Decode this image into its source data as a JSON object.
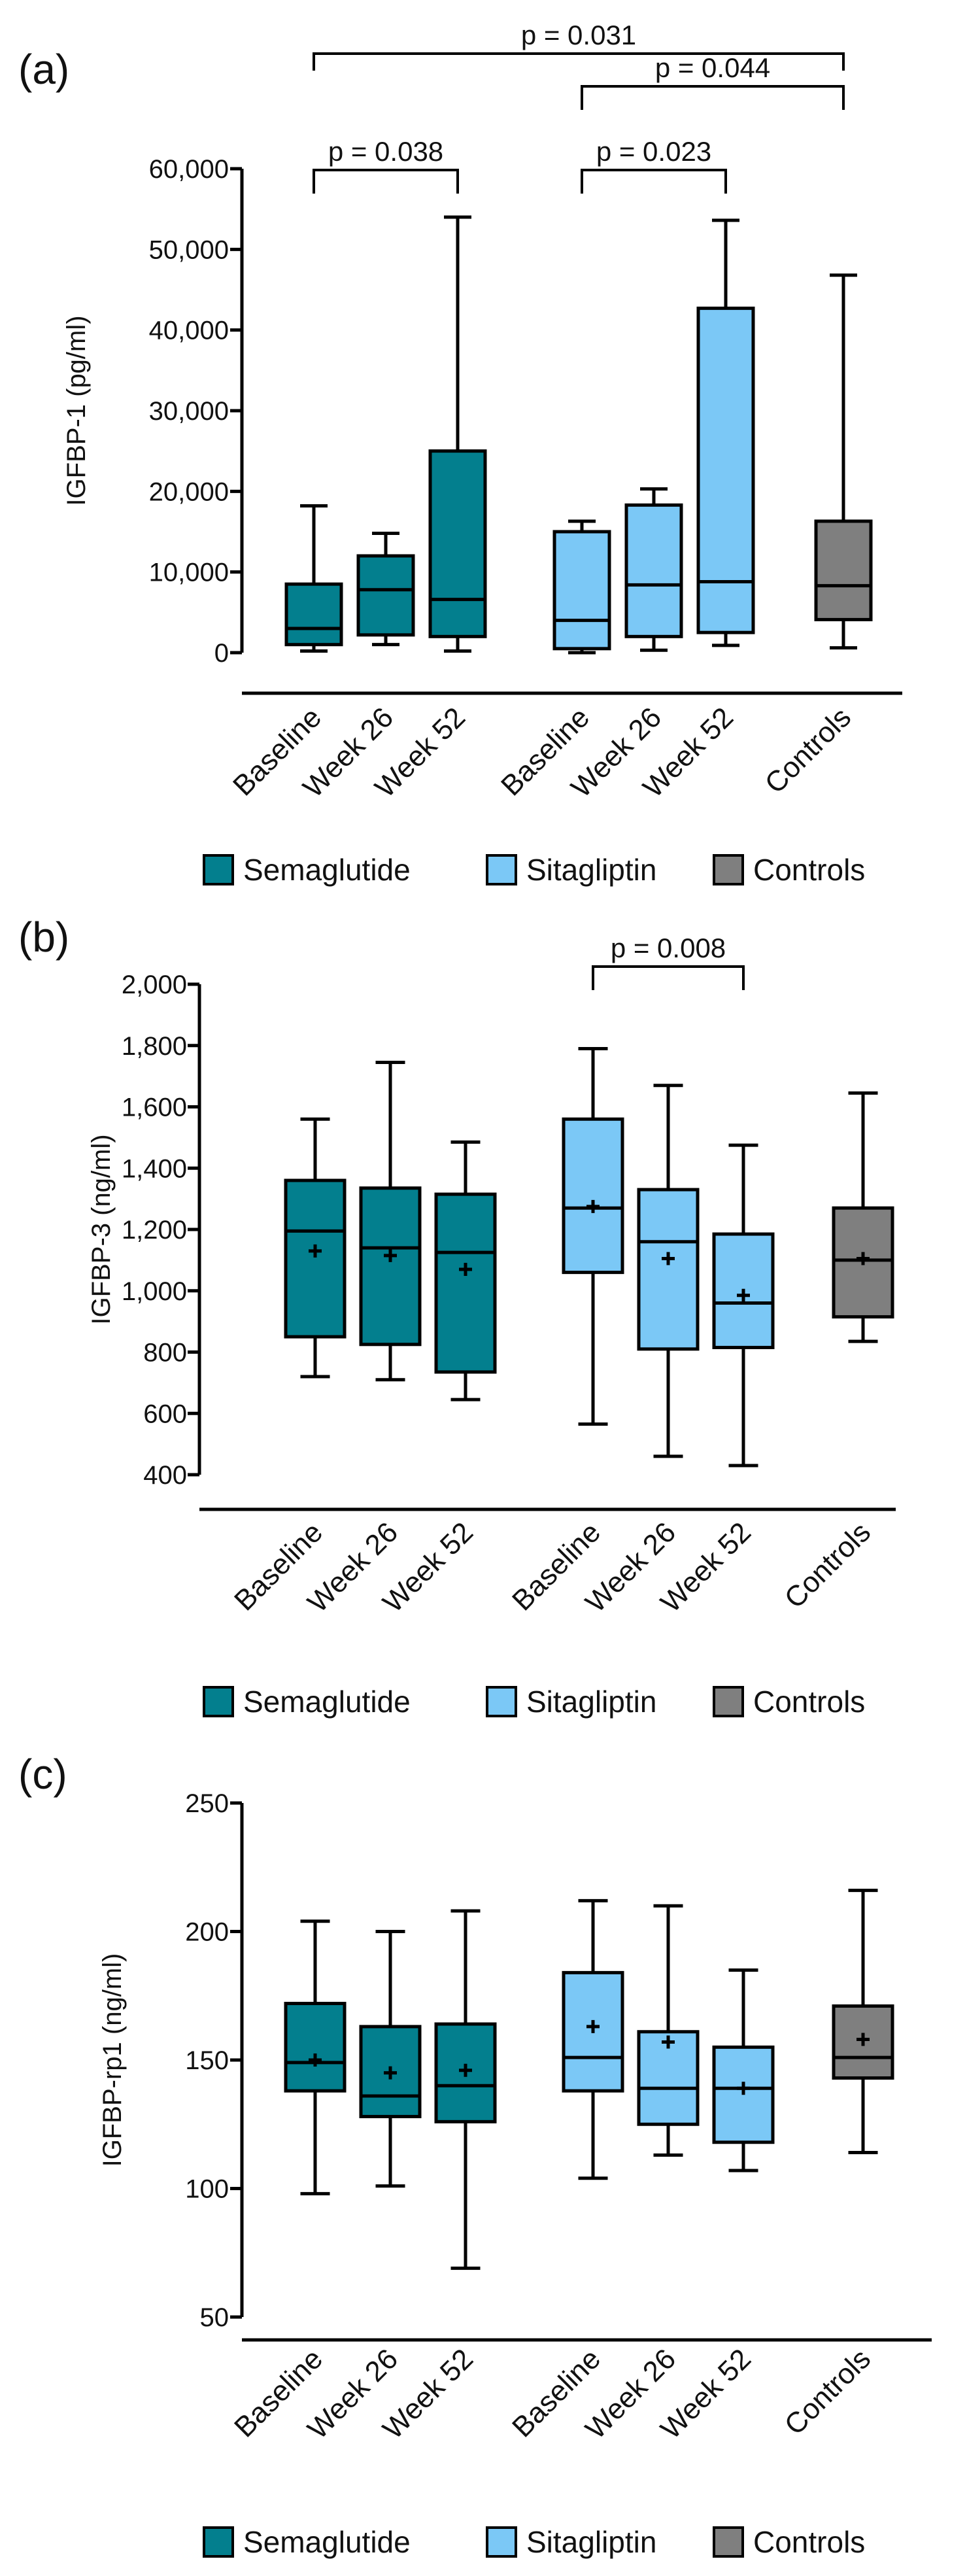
{
  "colors": {
    "semaglutide": "#037f8e",
    "sitagliptin": "#7bc8f6",
    "controls": "#7f7f7f",
    "line": "#000000"
  },
  "legend": [
    "Semaglutide",
    "Sitagliptin",
    "Controls"
  ],
  "chart_data": [
    {
      "type": "box",
      "panel_label": "(a)",
      "ylabel": "IGFBP-1 (pg/ml)",
      "ylim": [
        0,
        60000
      ],
      "yticks": [
        0,
        10000,
        20000,
        30000,
        40000,
        50000,
        60000
      ],
      "ytick_labels": [
        "0",
        "10,000",
        "20,000",
        "30,000",
        "40,000",
        "50,000",
        "60,000"
      ],
      "categories": [
        "Baseline",
        "Week 26",
        "Week 52",
        "Baseline",
        "Week 26",
        "Week 52",
        "Controls"
      ],
      "boxes": [
        {
          "group": "semaglutide",
          "min": 200,
          "q1": 1000,
          "median": 3000,
          "q3": 8500,
          "max": 18200
        },
        {
          "group": "semaglutide",
          "min": 1000,
          "q1": 2200,
          "median": 7800,
          "q3": 12000,
          "max": 14800
        },
        {
          "group": "semaglutide",
          "min": 200,
          "q1": 2000,
          "median": 6600,
          "q3": 25000,
          "max": 54000
        },
        {
          "group": "sitagliptin",
          "min": 0,
          "q1": 500,
          "median": 4000,
          "q3": 15000,
          "max": 16300
        },
        {
          "group": "sitagliptin",
          "min": 300,
          "q1": 2000,
          "median": 8400,
          "q3": 18300,
          "max": 20300
        },
        {
          "group": "sitagliptin",
          "min": 900,
          "q1": 2500,
          "median": 8800,
          "q3": 42700,
          "max": 53600
        },
        {
          "group": "controls",
          "min": 600,
          "q1": 4100,
          "median": 8300,
          "q3": 16300,
          "max": 46800
        }
      ],
      "comparisons": [
        {
          "from": 0,
          "to": 2,
          "label": "p = 0.038",
          "level": 1
        },
        {
          "from": 3,
          "to": 5,
          "label": "p = 0.023",
          "level": 1
        },
        {
          "from": 3,
          "to": 6,
          "label": "p = 0.044",
          "level": 2
        },
        {
          "from": 0,
          "to": 6,
          "label": "p = 0.031",
          "level": 3
        }
      ]
    },
    {
      "type": "box",
      "panel_label": "(b)",
      "ylabel": "IGFBP-3 (ng/ml)",
      "ylim": [
        400,
        2000
      ],
      "yticks": [
        400,
        600,
        800,
        1000,
        1200,
        1400,
        1600,
        1800,
        2000
      ],
      "ytick_labels": [
        "400",
        "600",
        "800",
        "1,000",
        "1,200",
        "1,400",
        "1,600",
        "1,800",
        "2,000"
      ],
      "categories": [
        "Baseline",
        "Week 26",
        "Week 52",
        "Baseline",
        "Week 26",
        "Week 52",
        "Controls"
      ],
      "boxes": [
        {
          "group": "semaglutide",
          "min": 720,
          "q1": 850,
          "median": 1195,
          "q3": 1360,
          "max": 1560,
          "mean": 1130
        },
        {
          "group": "semaglutide",
          "min": 710,
          "q1": 825,
          "median": 1140,
          "q3": 1335,
          "max": 1745,
          "mean": 1115
        },
        {
          "group": "semaglutide",
          "min": 645,
          "q1": 735,
          "median": 1125,
          "q3": 1315,
          "max": 1485,
          "mean": 1070
        },
        {
          "group": "sitagliptin",
          "min": 565,
          "q1": 1060,
          "median": 1270,
          "q3": 1560,
          "max": 1790,
          "mean": 1275
        },
        {
          "group": "sitagliptin",
          "min": 460,
          "q1": 810,
          "median": 1160,
          "q3": 1330,
          "max": 1670,
          "mean": 1105
        },
        {
          "group": "sitagliptin",
          "min": 430,
          "q1": 815,
          "median": 960,
          "q3": 1185,
          "max": 1475,
          "mean": 985
        },
        {
          "group": "controls",
          "min": 835,
          "q1": 915,
          "median": 1100,
          "q3": 1270,
          "max": 1645,
          "mean": 1105
        }
      ],
      "comparisons": [
        {
          "from": 3,
          "to": 5,
          "label": "p = 0.008",
          "level": 1
        }
      ]
    },
    {
      "type": "box",
      "panel_label": "(c)",
      "ylabel": "IGFBP-rp1 (ng/ml)",
      "ylim": [
        50,
        250
      ],
      "yticks": [
        50,
        100,
        150,
        200,
        250
      ],
      "ytick_labels": [
        "50",
        "100",
        "150",
        "200",
        "250"
      ],
      "categories": [
        "Baseline",
        "Week 26",
        "Week 52",
        "Baseline",
        "Week 26",
        "Week 52",
        "Controls"
      ],
      "boxes": [
        {
          "group": "semaglutide",
          "min": 98,
          "q1": 138,
          "median": 149,
          "q3": 172,
          "max": 204,
          "mean": 150
        },
        {
          "group": "semaglutide",
          "min": 101,
          "q1": 128,
          "median": 136,
          "q3": 163,
          "max": 200,
          "mean": 145
        },
        {
          "group": "semaglutide",
          "min": 69,
          "q1": 126,
          "median": 140,
          "q3": 164,
          "max": 208,
          "mean": 146
        },
        {
          "group": "sitagliptin",
          "min": 104,
          "q1": 138,
          "median": 151,
          "q3": 184,
          "max": 212,
          "mean": 163
        },
        {
          "group": "sitagliptin",
          "min": 113,
          "q1": 125,
          "median": 139,
          "q3": 161,
          "max": 210,
          "mean": 157
        },
        {
          "group": "sitagliptin",
          "min": 107,
          "q1": 118,
          "median": 139,
          "q3": 155,
          "max": 185,
          "mean": 139
        },
        {
          "group": "controls",
          "min": 114,
          "q1": 143,
          "median": 151,
          "q3": 171,
          "max": 216,
          "mean": 158
        }
      ],
      "comparisons": []
    }
  ]
}
